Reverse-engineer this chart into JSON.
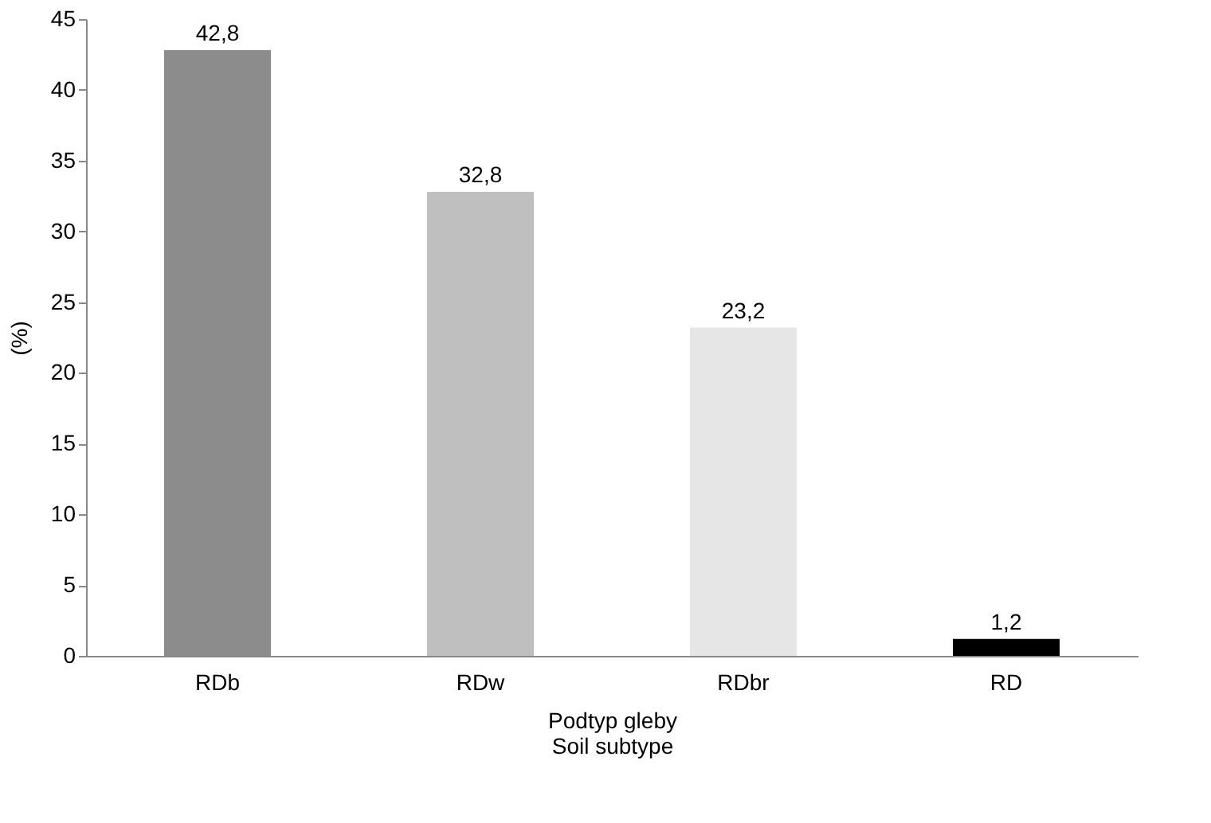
{
  "chart_data": {
    "type": "bar",
    "xlabel": "Podtyp gleby\nSoil subtype",
    "ylabel": "(%)",
    "categories": [
      "RDb",
      "RDw",
      "RDbr",
      "RD"
    ],
    "values": [
      42.8,
      32.8,
      23.2,
      1.2
    ],
    "colors": [
      "#8c8c8c",
      "#bfbfbf",
      "#e6e6e6",
      "#000000"
    ],
    "value_labels": [
      "42,8",
      "32,8",
      "23,2",
      "1,2"
    ],
    "ylim": [
      0,
      45
    ],
    "yticks": [
      0,
      5,
      10,
      15,
      20,
      25,
      30,
      35,
      40,
      45
    ],
    "grid": false
  }
}
